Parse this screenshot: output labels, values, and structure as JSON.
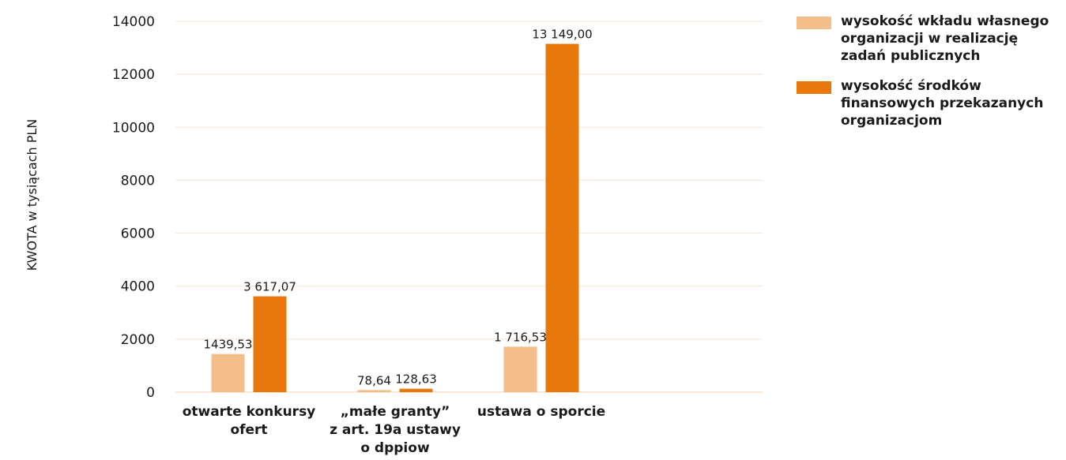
{
  "chart_data": {
    "type": "bar",
    "ylabel": "KWOTA w tysiącach PLN",
    "xlabel": "",
    "ylim": [
      0,
      14000
    ],
    "yticks": [
      0,
      2000,
      4000,
      6000,
      8000,
      10000,
      12000,
      14000
    ],
    "grid": true,
    "legend_position": "top-right",
    "categories": [
      [
        "otwarte konkursy",
        "ofert"
      ],
      [
        "„małe granty”",
        "z art. 19a ustawy",
        "o dppiow"
      ],
      [
        "ustawa o sporcie"
      ]
    ],
    "series": [
      {
        "name": "wysokość wkładu własnego organizacji w realizację zadań publicznych",
        "color": "#F4BE8A",
        "values": [
          1439.53,
          78.64,
          1716.53
        ],
        "labels": [
          "1439,53",
          "78,64",
          "1 716,53"
        ]
      },
      {
        "name": "wysokość środków finansowych przekazanych organizacjom",
        "color": "#E8780C",
        "values": [
          3617.07,
          128.63,
          13149.0
        ],
        "labels": [
          "3 617,07",
          "128,63",
          "13 149,00"
        ]
      }
    ]
  },
  "legend": {
    "items": [
      "wysokość wkładu własnego organizacji w realizację zadań publicznych",
      "wysokość środków finansowych przekazanych organizacjom"
    ]
  }
}
